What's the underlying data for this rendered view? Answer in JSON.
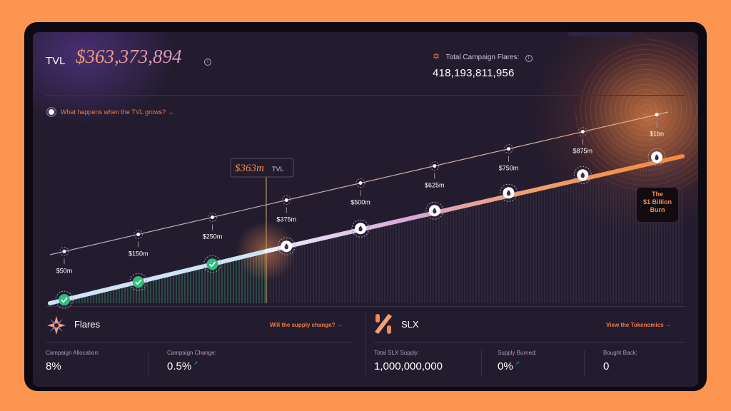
{
  "tvl": {
    "label": "TVL",
    "value": "$363,373,894"
  },
  "campaign_flares": {
    "label": "Total Campaign Flares:",
    "value": "418,193,811,956"
  },
  "tvl_link": "What happens when the TVL grows? →",
  "milestones": [
    {
      "label": "$50m",
      "reached": true
    },
    {
      "label": "$150m",
      "reached": true
    },
    {
      "label": "$250m",
      "reached": true
    },
    {
      "label": "$375m",
      "reached": false
    },
    {
      "label": "$500m",
      "reached": false
    },
    {
      "label": "$625m",
      "reached": false
    },
    {
      "label": "$750m",
      "reached": false
    },
    {
      "label": "$875m",
      "reached": false
    },
    {
      "label": "$1bn",
      "reached": false
    }
  ],
  "current_marker": {
    "value": "$363m",
    "suffix": "TVL"
  },
  "burn_box": {
    "line1": "The",
    "line2": "$1 Billion",
    "line3": "Burn"
  },
  "flares_section": {
    "title": "Flares",
    "link": "Will the supply change? →",
    "stats": [
      {
        "label": "Campaign Allocation:",
        "value": "8%"
      },
      {
        "label": "Campaign Change:",
        "value": "0.5%",
        "trend": "↗"
      }
    ]
  },
  "slx_section": {
    "title": "SLX",
    "link": "View the Tokenomics →",
    "stats": [
      {
        "label": "Total SLX Supply:",
        "value": "1,000,000,000"
      },
      {
        "label": "Supply Burned:",
        "value": "0%",
        "trend": "↗"
      },
      {
        "label": "Bought Back:",
        "value": "0"
      }
    ]
  },
  "colors": {
    "background": "#fb9550",
    "panel": "#231c2f",
    "accent": "#ef7a45",
    "success": "#2fbf7a"
  },
  "icons": [
    "info-icon",
    "star-icon",
    "flare-logo-icon",
    "slx-logo-icon",
    "check-icon",
    "flame-icon",
    "arrow-right-icon"
  ]
}
